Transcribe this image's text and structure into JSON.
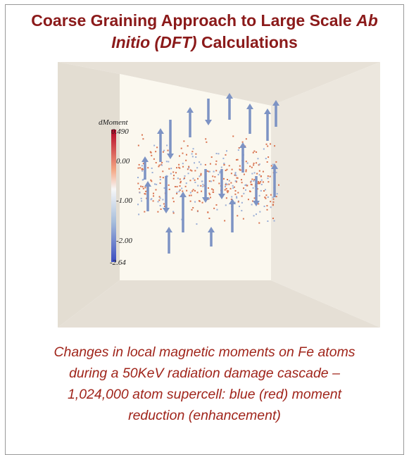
{
  "title": {
    "parts": [
      "Coarse Graining Approach to Large Scale ",
      "Ab Initio (DFT)",
      " Calculations"
    ]
  },
  "colorbar": {
    "title": "dMoment",
    "labels": [
      "0.490",
      "0.00",
      "-1.00",
      "-2.00",
      "-2.64"
    ]
  },
  "caption": {
    "lines": [
      "Changes in local magnetic moments on Fe atoms",
      "during a 50KeV radiation damage cascade –",
      "1,024,000 atom supercell: blue (red) moment",
      "reduction (enhancement)"
    ]
  }
}
